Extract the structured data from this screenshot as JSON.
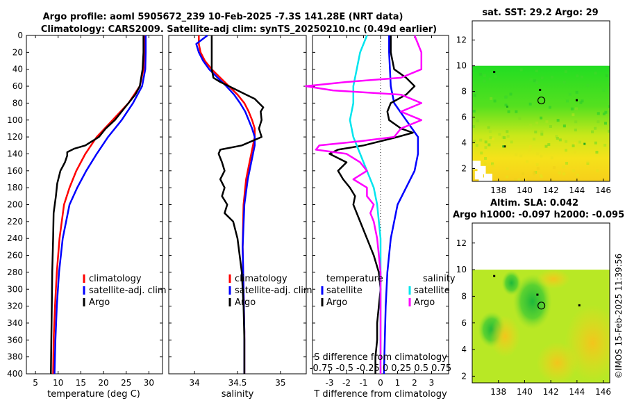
{
  "header": {
    "title_line1": "Argo profile: aoml 5905672_239 10-Feb-2025 -7.3S 141.28E (NRT data)",
    "title_line2": "Climatology: CARS2009. Satellite-adj clim: synTS_20250210.nc (0.49d earlier)"
  },
  "side_text": "©IMOS 15-Feb-2025 11:39:56",
  "depth_ticks": [
    "0",
    "20",
    "40",
    "60",
    "80",
    "100",
    "120",
    "140",
    "160",
    "180",
    "200",
    "220",
    "240",
    "260",
    "280",
    "300",
    "320",
    "340",
    "360",
    "380",
    "400"
  ],
  "colors": {
    "climatology": "#ff0000",
    "satellite": "#0000ff",
    "argo": "#000000",
    "sat_T": "#00e5ee",
    "argo_S": "#ff00ff"
  },
  "chart_data": [
    {
      "type": "line",
      "name": "temperature",
      "xlabel": "temperature (deg C)",
      "xlim": [
        3,
        33
      ],
      "ylim": [
        0,
        400
      ],
      "xticks": [
        "5",
        "10",
        "15",
        "20",
        "25",
        "30"
      ],
      "xtick_values": [
        5,
        10,
        15,
        20,
        25,
        30
      ],
      "legend": [
        "climatology",
        "satellite-adj. clim",
        "Argo"
      ],
      "series": [
        {
          "name": "climatology",
          "depth": [
            0,
            20,
            40,
            60,
            80,
            100,
            120,
            140,
            160,
            180,
            200,
            240,
            280,
            320,
            360,
            400
          ],
          "values": [
            29.0,
            29.0,
            28.8,
            28.0,
            25.5,
            22.0,
            18.5,
            16.0,
            14.0,
            12.5,
            11.3,
            10.3,
            9.7,
            9.3,
            9.0,
            8.9
          ]
        },
        {
          "name": "satellite-adj. clim",
          "depth": [
            0,
            20,
            40,
            60,
            80,
            100,
            120,
            140,
            160,
            180,
            200,
            240,
            280,
            320,
            360,
            400
          ],
          "values": [
            29.3,
            29.3,
            29.2,
            28.5,
            26.5,
            24.0,
            21.0,
            18.5,
            16.2,
            14.2,
            12.5,
            11.0,
            10.2,
            9.7,
            9.4,
            9.2
          ]
        },
        {
          "name": "Argo",
          "depth": [
            0,
            20,
            40,
            60,
            70,
            80,
            90,
            100,
            110,
            120,
            130,
            134,
            138,
            142,
            150,
            160,
            175,
            190,
            210,
            240,
            280,
            320,
            360,
            400
          ],
          "values": [
            28.8,
            28.8,
            28.6,
            28.0,
            27.0,
            25.5,
            24.0,
            22.5,
            20.5,
            19.0,
            16.0,
            13.5,
            12.0,
            12.0,
            11.5,
            10.5,
            9.8,
            9.5,
            9.0,
            8.9,
            8.7,
            8.6,
            8.5,
            8.4
          ]
        }
      ]
    },
    {
      "type": "line",
      "name": "salinity",
      "xlabel": "salinity",
      "xlim": [
        33.7,
        35.3
      ],
      "ylim": [
        0,
        400
      ],
      "xticks": [
        "34",
        "34.5",
        "35"
      ],
      "xtick_values": [
        34.0,
        34.5,
        35.0
      ],
      "legend": [
        "climatology",
        "satellite-adj. clim",
        "Argo"
      ],
      "series": [
        {
          "name": "climatology",
          "depth": [
            0,
            10,
            20,
            30,
            40,
            50,
            60,
            70,
            80,
            90,
            100,
            110,
            120,
            130,
            150,
            170,
            200,
            250,
            300,
            350,
            400
          ],
          "values": [
            34.05,
            34.05,
            34.07,
            34.12,
            34.2,
            34.3,
            34.4,
            34.5,
            34.58,
            34.63,
            34.67,
            34.7,
            34.7,
            34.68,
            34.64,
            34.6,
            34.57,
            34.56,
            34.57,
            34.58,
            34.58
          ]
        },
        {
          "name": "satellite-adj. clim",
          "depth": [
            0,
            10,
            20,
            30,
            40,
            50,
            60,
            70,
            80,
            90,
            100,
            110,
            120,
            130,
            150,
            170,
            200,
            250,
            300,
            350,
            400
          ],
          "values": [
            34.15,
            34.02,
            34.05,
            34.1,
            34.17,
            34.27,
            34.37,
            34.46,
            34.53,
            34.59,
            34.63,
            34.67,
            34.7,
            34.7,
            34.66,
            34.62,
            34.58,
            34.56,
            34.57,
            34.58,
            34.58
          ]
        },
        {
          "name": "Argo",
          "depth": [
            0,
            20,
            40,
            50,
            55,
            60,
            65,
            70,
            75,
            80,
            85,
            90,
            100,
            110,
            120,
            130,
            135,
            140,
            150,
            160,
            170,
            180,
            190,
            200,
            210,
            220,
            240,
            280,
            320,
            360,
            400
          ],
          "values": [
            34.2,
            34.2,
            34.2,
            34.22,
            34.3,
            34.4,
            34.5,
            34.6,
            34.7,
            34.75,
            34.8,
            34.77,
            34.78,
            34.75,
            34.78,
            34.55,
            34.3,
            34.28,
            34.32,
            34.35,
            34.3,
            34.35,
            34.32,
            34.38,
            34.35,
            34.45,
            34.5,
            34.55,
            34.57,
            34.58,
            34.58
          ]
        }
      ]
    },
    {
      "type": "line",
      "name": "differences",
      "xlabel": "T difference from climatology",
      "top_xlabel": "S difference from climatology",
      "top_ticks": "-0.75 -0.5 -0.25  0  0.25 0.5 0.75",
      "xlim": [
        -4,
        4
      ],
      "ylim": [
        0,
        400
      ],
      "xticks": [
        "-3",
        "-2",
        "-1",
        "0",
        "1",
        "2",
        "3"
      ],
      "xtick_values": [
        -3,
        -2,
        -1,
        0,
        1,
        2,
        3
      ],
      "legend_left_title": "temperature",
      "legend_right_title": "salinity",
      "legend_left": [
        "satellite",
        "Argo"
      ],
      "legend_right": [
        "satellite",
        "Argo"
      ],
      "series": [
        {
          "name": "T satellite",
          "depth": [
            0,
            20,
            40,
            60,
            80,
            100,
            120,
            140,
            160,
            180,
            200,
            240,
            280,
            320,
            360,
            400
          ],
          "values": [
            0.5,
            0.5,
            0.55,
            0.6,
            0.8,
            1.5,
            2.2,
            2.2,
            2.0,
            1.5,
            1.0,
            0.6,
            0.4,
            0.3,
            0.25,
            0.2
          ]
        },
        {
          "name": "T Argo",
          "depth": [
            0,
            20,
            40,
            50,
            60,
            70,
            80,
            90,
            100,
            110,
            115,
            120,
            130,
            135,
            140,
            145,
            150,
            160,
            170,
            180,
            190,
            200,
            220,
            240,
            260,
            280,
            300,
            320,
            340,
            360,
            380,
            400
          ],
          "values": [
            0.6,
            0.6,
            0.8,
            1.5,
            2.0,
            1.5,
            0.6,
            0.4,
            0.5,
            1.2,
            1.9,
            1.0,
            -1.0,
            -2.5,
            -3.0,
            -2.5,
            -2.0,
            -2.5,
            -2.2,
            -1.8,
            -1.5,
            -1.6,
            -1.2,
            -0.8,
            -0.4,
            -0.1,
            0.0,
            -0.1,
            -0.2,
            -0.2,
            -0.3,
            -0.3
          ]
        },
        {
          "name": "S satellite",
          "depth": [
            0,
            20,
            40,
            60,
            80,
            100,
            120,
            140,
            160,
            180,
            200,
            240,
            280,
            320,
            360,
            400
          ],
          "values": [
            -0.2,
            -0.3,
            -0.35,
            -0.4,
            -0.4,
            -0.45,
            -0.4,
            -0.3,
            -0.2,
            -0.1,
            -0.05,
            0.0,
            0.0,
            0.0,
            0.0,
            0.0
          ]
        },
        {
          "name": "S Argo",
          "depth": [
            0,
            20,
            40,
            50,
            55,
            60,
            65,
            70,
            80,
            90,
            100,
            110,
            120,
            125,
            130,
            135,
            140,
            150,
            160,
            170,
            180,
            190,
            200,
            210,
            220,
            240,
            280,
            320,
            360,
            400
          ],
          "values": [
            0.5,
            0.6,
            0.6,
            0.3,
            -0.5,
            -1.1,
            -0.7,
            0.3,
            0.6,
            0.3,
            0.6,
            0.3,
            0.2,
            -0.3,
            -0.9,
            -0.95,
            -0.5,
            -0.3,
            -0.2,
            -0.4,
            -0.2,
            -0.2,
            -0.1,
            -0.15,
            -0.1,
            -0.05,
            0.0,
            0.0,
            0.0,
            0.0
          ]
        }
      ]
    },
    {
      "type": "heatmap",
      "name": "sst_map",
      "title": "sat. SST: 29.2 Argo: 29",
      "xlim": [
        136,
        146.5
      ],
      "ylim": [
        1,
        13.5
      ],
      "data_top_lat": 10,
      "xticks": [
        "138",
        "140",
        "142",
        "144",
        "146"
      ],
      "xtick_values": [
        138,
        140,
        142,
        144,
        146
      ],
      "yticks": [
        "2",
        "4",
        "6",
        "8",
        "10",
        "12"
      ],
      "ytick_values": [
        2,
        4,
        6,
        8,
        10,
        12
      ],
      "argo_lon": 141.28,
      "argo_lat": 7.3
    },
    {
      "type": "heatmap",
      "name": "sla_map",
      "title_line1": "Altim. SLA: 0.042",
      "title_line2": "Argo h1000: -0.097 h2000: -0.095",
      "xlim": [
        136,
        146.5
      ],
      "ylim": [
        1.5,
        13.5
      ],
      "data_top_lat": 10,
      "xticks": [
        "138",
        "140",
        "142",
        "144",
        "146"
      ],
      "xtick_values": [
        138,
        140,
        142,
        144,
        146
      ],
      "yticks": [
        "2",
        "4",
        "6",
        "8",
        "10",
        "12"
      ],
      "ytick_values": [
        2,
        4,
        6,
        8,
        10,
        12
      ],
      "argo_lon": 141.28,
      "argo_lat": 7.3
    }
  ]
}
